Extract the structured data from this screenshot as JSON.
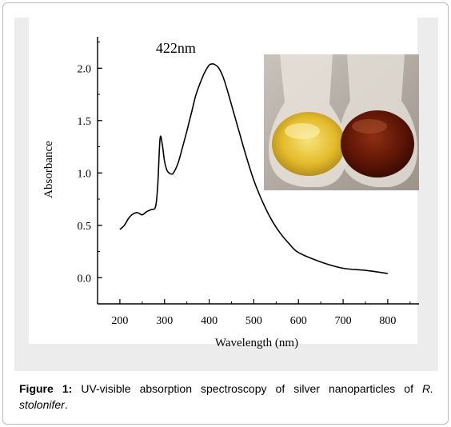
{
  "figure": {
    "caption_label": "Figure 1:",
    "caption_text": "UV-visible absorption spectroscopy of silver nanoparticles of",
    "caption_species": "R. stolonifer",
    "caption_end": "."
  },
  "inset_image": {
    "description_icon": "photo-two-flasks",
    "colors": {
      "left_flask": "#e8c12a",
      "right_flask": "#6a1808",
      "background": "#b0a8a0"
    }
  },
  "chart_data": {
    "type": "line",
    "title": "",
    "xlabel": "Wavelength (nm)",
    "ylabel": "Absorbance",
    "xlim": [
      150,
      870
    ],
    "ylim": [
      -0.25,
      2.3
    ],
    "xticks": [
      200,
      300,
      400,
      500,
      600,
      700,
      800
    ],
    "yticks": [
      0.0,
      0.5,
      1.0,
      1.5,
      2.0
    ],
    "ytick_labels": [
      "0.0",
      "0.5",
      "1.0",
      "1.5",
      "2.0"
    ],
    "grid": false,
    "annotation": {
      "text": "422nm",
      "x": 422,
      "y": 2.07
    },
    "series": [
      {
        "color": "#000000",
        "x": [
          200,
          210,
          220,
          230,
          240,
          250,
          260,
          270,
          280,
          285,
          290,
          295,
          300,
          305,
          310,
          315,
          320,
          330,
          340,
          350,
          360,
          370,
          380,
          390,
          400,
          405,
          410,
          420,
          430,
          440,
          450,
          460,
          470,
          480,
          500,
          520,
          540,
          560,
          580,
          600,
          650,
          700,
          750,
          800
        ],
        "y": [
          0.46,
          0.5,
          0.57,
          0.61,
          0.62,
          0.6,
          0.63,
          0.65,
          0.68,
          0.9,
          1.33,
          1.27,
          1.11,
          1.03,
          1.0,
          0.99,
          1.0,
          1.09,
          1.24,
          1.4,
          1.57,
          1.74,
          1.86,
          1.96,
          2.03,
          2.04,
          2.04,
          2.01,
          1.93,
          1.8,
          1.65,
          1.5,
          1.35,
          1.2,
          0.93,
          0.72,
          0.55,
          0.42,
          0.32,
          0.24,
          0.15,
          0.09,
          0.07,
          0.04
        ]
      }
    ]
  }
}
